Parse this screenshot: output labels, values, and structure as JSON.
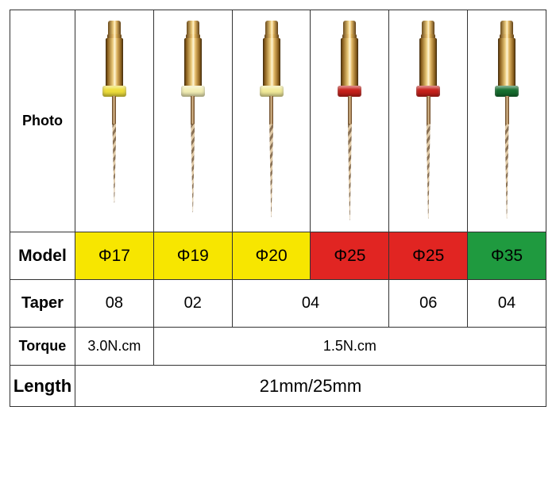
{
  "headers": {
    "photo": "Photo",
    "model": "Model",
    "taper": "Taper",
    "torque": "Torque",
    "length": "Length"
  },
  "files": [
    {
      "model": "Φ17",
      "model_bg": "#f7e600",
      "collar_color": "#eede3b",
      "flute_len": 100
    },
    {
      "model": "Φ19",
      "model_bg": "#f7e600",
      "collar_color": "#f3efb5",
      "flute_len": 112
    },
    {
      "model": "Φ20",
      "model_bg": "#f7e600",
      "collar_color": "#f2eb9a",
      "flute_len": 118
    },
    {
      "model": "Φ25",
      "model_bg": "#e12522",
      "collar_color": "#c6201a",
      "flute_len": 122
    },
    {
      "model": "Φ25",
      "model_bg": "#e12522",
      "collar_color": "#c6201a",
      "flute_len": 120
    },
    {
      "model": "Φ35",
      "model_bg": "#1f9a3f",
      "collar_color": "#166e2f",
      "flute_len": 120
    }
  ],
  "taper": {
    "cells": [
      {
        "text": "08",
        "span": 1
      },
      {
        "text": "02",
        "span": 1
      },
      {
        "text": "04",
        "span": 2
      },
      {
        "text": "06",
        "span": 1
      },
      {
        "text": "04",
        "span": 1
      }
    ]
  },
  "torque": {
    "cells": [
      {
        "text": "3.0N.cm",
        "span": 1
      },
      {
        "text": "1.5N.cm",
        "span": 5
      }
    ]
  },
  "length": {
    "text": "21mm/25mm",
    "span": 6
  },
  "colors": {
    "border": "#333333",
    "background": "#ffffff",
    "gold_light": "#fff2c8",
    "gold_mid": "#e2b866",
    "gold_dark": "#5e3f16"
  }
}
